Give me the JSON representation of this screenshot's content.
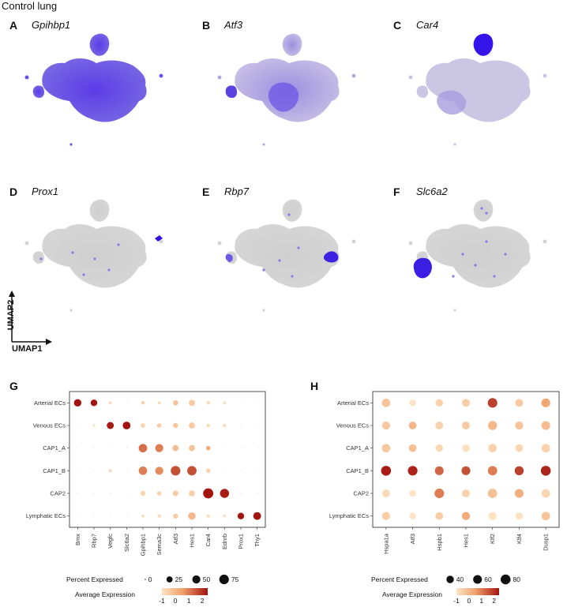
{
  "figure": {
    "title": "Control lung",
    "umap_axis": {
      "y": "UMAP2",
      "x": "UMAP1"
    },
    "umap_panels": [
      {
        "letter": "A",
        "gene": "Gpihbp1"
      },
      {
        "letter": "B",
        "gene": "Atf3"
      },
      {
        "letter": "C",
        "gene": "Car4"
      },
      {
        "letter": "D",
        "gene": "Prox1"
      },
      {
        "letter": "E",
        "gene": "Rbp7"
      },
      {
        "letter": "F",
        "gene": "Slc6a2"
      }
    ],
    "dot_panel_letters": [
      "G",
      "H"
    ]
  },
  "colors": {
    "low": "#fde3c3",
    "mid": "#f0a06a",
    "high": "#a3140f",
    "umap_high": "#3f1fe6",
    "umap_gray": "#d3d3d3"
  },
  "chart_data": [
    {
      "type": "dotplot",
      "panel": "G",
      "rows": [
        "Arterial ECs",
        "Venous ECs",
        "CAP1_A",
        "CAP1_B",
        "CAP2",
        "Lymphatic ECs"
      ],
      "columns": [
        "Bmx",
        "Rbp7",
        "Vegfc",
        "Slc6a2",
        "Gpihbp1",
        "Sema3c",
        "Atf3",
        "Hes1",
        "Car4",
        "Ednrb",
        "Prox1",
        "Thy1"
      ],
      "percent": [
        [
          40,
          30,
          3,
          0,
          5,
          3,
          15,
          25,
          5,
          3,
          0,
          0
        ],
        [
          0,
          2,
          35,
          45,
          10,
          10,
          15,
          25,
          5,
          3,
          0,
          0
        ],
        [
          0,
          0,
          0,
          0,
          55,
          50,
          25,
          25,
          10,
          0,
          0,
          0
        ],
        [
          0,
          0,
          3,
          0,
          55,
          50,
          75,
          70,
          10,
          0,
          0,
          0
        ],
        [
          0,
          0,
          0,
          0,
          15,
          10,
          20,
          25,
          85,
          65,
          0,
          0
        ],
        [
          0,
          0,
          0,
          0,
          3,
          5,
          15,
          40,
          5,
          3,
          30,
          45
        ]
      ],
      "avg_expr": [
        [
          2.4,
          2.4,
          -0.8,
          -1,
          -0.6,
          -0.8,
          -0.2,
          -0.4,
          -0.8,
          -0.8,
          -1,
          -1
        ],
        [
          -1,
          -1,
          2.3,
          2.4,
          -0.6,
          -0.5,
          -0.3,
          -0.4,
          -0.8,
          -0.8,
          -1,
          -1
        ],
        [
          -1,
          -1,
          -1,
          -1,
          1.2,
          1.0,
          -0.1,
          -0.3,
          0.3,
          -1,
          -1,
          -1
        ],
        [
          -1,
          -1,
          -0.8,
          -1,
          1.0,
          0.8,
          1.6,
          1.6,
          -0.6,
          -1,
          -1,
          -1
        ],
        [
          -1,
          -1,
          -1,
          -1,
          -0.7,
          -0.6,
          -0.4,
          -0.6,
          2.4,
          2.3,
          -1,
          -1
        ],
        [
          -1,
          -1,
          -1,
          -1,
          -0.9,
          -0.8,
          -0.5,
          0.0,
          -0.9,
          -0.9,
          2.4,
          2.4
        ]
      ],
      "size_legend": {
        "title": "Percent Expressed",
        "values": [
          0,
          25,
          50,
          75
        ]
      },
      "color_legend": {
        "title": "Average Expression",
        "ticks": [
          -1,
          0,
          1,
          2
        ],
        "range": [
          -1,
          2.4
        ]
      }
    },
    {
      "type": "dotplot",
      "panel": "H",
      "rows": [
        "Arterial ECs",
        "Venous ECs",
        "CAP1_A",
        "CAP1_B",
        "CAP2",
        "Lymphatic ECs"
      ],
      "columns": [
        "Hspa1a",
        "Atf3",
        "Hspb1",
        "Hes1",
        "Klf2",
        "Klf4",
        "Dusp1"
      ],
      "percent": [
        [
          55,
          30,
          40,
          45,
          75,
          45,
          60
        ],
        [
          50,
          45,
          45,
          45,
          65,
          50,
          60
        ],
        [
          55,
          45,
          40,
          40,
          55,
          45,
          55
        ],
        [
          80,
          75,
          60,
          60,
          70,
          65,
          80
        ],
        [
          45,
          30,
          75,
          45,
          70,
          60,
          55
        ],
        [
          50,
          30,
          45,
          50,
          50,
          40,
          55
        ]
      ],
      "avg_expr": [
        [
          -0.3,
          -1,
          -0.6,
          -0.5,
          1.8,
          -0.4,
          0.4
        ],
        [
          -0.4,
          0.0,
          -0.6,
          -0.4,
          0.0,
          -0.3,
          -0.1
        ],
        [
          -0.4,
          -0.2,
          -0.7,
          -0.9,
          -0.6,
          -0.7,
          -0.6
        ],
        [
          2.3,
          2.2,
          1.3,
          1.6,
          1.0,
          1.8,
          2.2
        ],
        [
          -0.8,
          -1,
          1.0,
          -0.6,
          -0.2,
          0.2,
          -0.7
        ],
        [
          -0.5,
          -1,
          -0.5,
          0.3,
          -1.0,
          -1.0,
          -0.3
        ]
      ],
      "size_legend": {
        "title": "Percent Expressed",
        "values": [
          40,
          60,
          80
        ]
      },
      "color_legend": {
        "title": "Average Expression",
        "ticks": [
          -1,
          0,
          1,
          2
        ],
        "range": [
          -1,
          2.4
        ]
      }
    }
  ]
}
